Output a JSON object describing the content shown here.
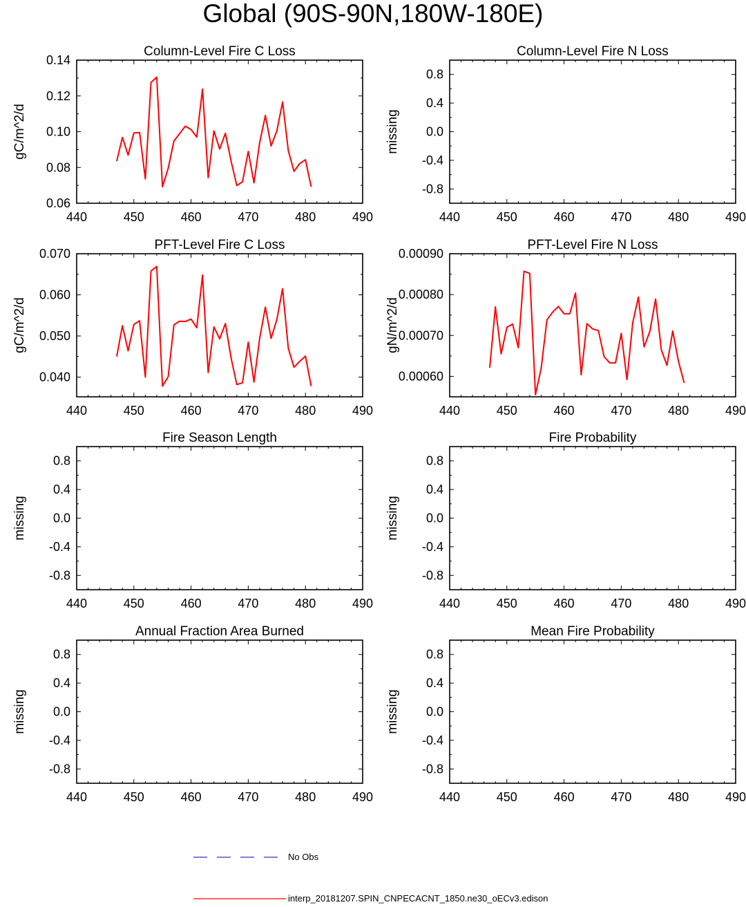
{
  "title": "Global (90S-90N,180W-180E)",
  "colors": {
    "model": "#ff0000",
    "obs": "#3333cc",
    "axis": "#000000"
  },
  "legend": {
    "obs_label": "No Obs",
    "model_label": "interp_20181207.SPIN_CNPECACNT_1850.ne30_oECv3.edison"
  },
  "chart_data": [
    {
      "type": "line",
      "title": "Column-Level Fire C Loss",
      "ylabel": "gC/m^2/d",
      "xlim": [
        440,
        490
      ],
      "ylim": [
        0.06,
        0.14
      ],
      "xticks": [
        "440",
        "450",
        "460",
        "470",
        "480",
        "490"
      ],
      "yticks": [
        {
          "v": 0.06,
          "label": "0.06"
        },
        {
          "v": 0.08,
          "label": "0.08"
        },
        {
          "v": 0.1,
          "label": "0.10"
        },
        {
          "v": 0.12,
          "label": "0.12"
        },
        {
          "v": 0.14,
          "label": "0.14"
        }
      ],
      "series": [
        {
          "x": [
            447,
            448,
            449,
            450,
            451,
            452,
            453,
            454,
            455,
            456,
            457,
            458,
            459,
            460,
            461,
            462,
            463,
            464,
            465,
            466,
            467,
            468,
            469,
            470,
            471,
            472,
            473,
            474,
            475,
            476,
            477,
            478,
            479,
            480,
            481
          ],
          "y": [
            0.0835,
            0.0968,
            0.0869,
            0.0993,
            0.0995,
            0.0736,
            0.1275,
            0.1305,
            0.0692,
            0.0795,
            0.0948,
            0.0989,
            0.1031,
            0.1012,
            0.097,
            0.1238,
            0.0743,
            0.1005,
            0.0903,
            0.0991,
            0.0835,
            0.0699,
            0.072,
            0.089,
            0.0714,
            0.0941,
            0.1091,
            0.092,
            0.1004,
            0.1166,
            0.0894,
            0.0778,
            0.0822,
            0.0843,
            0.0692
          ]
        }
      ]
    },
    {
      "type": "line",
      "title": "Column-Level Fire N Loss",
      "ylabel": "missing",
      "xlim": [
        440,
        490
      ],
      "ylim": [
        -1,
        1
      ],
      "xticks": [
        "440",
        "450",
        "460",
        "470",
        "480",
        "490"
      ],
      "yticks": [
        {
          "v": -0.8,
          "label": "-0.8"
        },
        {
          "v": -0.4,
          "label": "-0.4"
        },
        {
          "v": 0.0,
          "label": "0.0"
        },
        {
          "v": 0.4,
          "label": "0.4"
        },
        {
          "v": 0.8,
          "label": "0.8"
        }
      ],
      "series": []
    },
    {
      "type": "line",
      "title": "PFT-Level Fire C Loss",
      "ylabel": "gC/m^2/d",
      "xlim": [
        440,
        490
      ],
      "ylim": [
        0.0352,
        0.07
      ],
      "xticks": [
        "440",
        "450",
        "460",
        "470",
        "480",
        "490"
      ],
      "yticks": [
        {
          "v": 0.04,
          "label": "0.040"
        },
        {
          "v": 0.05,
          "label": "0.050"
        },
        {
          "v": 0.06,
          "label": "0.060"
        },
        {
          "v": 0.07,
          "label": "0.070"
        }
      ],
      "series": [
        {
          "x": [
            447,
            448,
            449,
            450,
            451,
            452,
            453,
            454,
            455,
            456,
            457,
            458,
            459,
            460,
            461,
            462,
            463,
            464,
            465,
            466,
            467,
            468,
            469,
            470,
            471,
            472,
            473,
            474,
            475,
            476,
            477,
            478,
            479,
            480,
            481
          ],
          "y": [
            0.045,
            0.0525,
            0.0464,
            0.0528,
            0.0537,
            0.04,
            0.0658,
            0.0669,
            0.0378,
            0.0401,
            0.0527,
            0.0536,
            0.0535,
            0.0541,
            0.052,
            0.0648,
            0.0411,
            0.0522,
            0.0493,
            0.053,
            0.0446,
            0.0382,
            0.0386,
            0.0485,
            0.0388,
            0.0495,
            0.057,
            0.0494,
            0.054,
            0.0615,
            0.047,
            0.0424,
            0.0438,
            0.0451,
            0.0378
          ]
        }
      ]
    },
    {
      "type": "line",
      "title": "PFT-Level Fire N Loss",
      "ylabel": "gN/m^2/d",
      "xlim": [
        440,
        490
      ],
      "ylim": [
        0.00055,
        0.0009
      ],
      "xticks": [
        "440",
        "450",
        "460",
        "470",
        "480",
        "490"
      ],
      "yticks": [
        {
          "v": 0.0006,
          "label": "0.00060"
        },
        {
          "v": 0.0007,
          "label": "0.00070"
        },
        {
          "v": 0.0008,
          "label": "0.00080"
        },
        {
          "v": 0.0009,
          "label": "0.00090"
        }
      ],
      "series": [
        {
          "x": [
            447,
            448,
            449,
            450,
            451,
            452,
            453,
            454,
            455,
            456,
            457,
            458,
            459,
            460,
            461,
            462,
            463,
            464,
            465,
            466,
            467,
            468,
            469,
            470,
            471,
            472,
            473,
            474,
            475,
            476,
            477,
            478,
            479,
            480,
            481
          ],
          "y": [
            0.000621,
            0.00077,
            0.000655,
            0.00072,
            0.000728,
            0.00067,
            0.000857,
            0.000852,
            0.000555,
            0.00062,
            0.000738,
            0.000757,
            0.000771,
            0.000753,
            0.000753,
            0.000804,
            0.000604,
            0.000729,
            0.000716,
            0.000712,
            0.000648,
            0.000633,
            0.000633,
            0.000705,
            0.000592,
            0.000731,
            0.000794,
            0.000672,
            0.00071,
            0.000789,
            0.000665,
            0.000627,
            0.000711,
            0.000637,
            0.000584
          ]
        }
      ]
    },
    {
      "type": "line",
      "title": "Fire Season Length",
      "ylabel": "missing",
      "xlim": [
        440,
        490
      ],
      "ylim": [
        -1,
        1
      ],
      "xticks": [
        "440",
        "450",
        "460",
        "470",
        "480",
        "490"
      ],
      "yticks": [
        {
          "v": -0.8,
          "label": "-0.8"
        },
        {
          "v": -0.4,
          "label": "-0.4"
        },
        {
          "v": 0.0,
          "label": "0.0"
        },
        {
          "v": 0.4,
          "label": "0.4"
        },
        {
          "v": 0.8,
          "label": "0.8"
        }
      ],
      "series": []
    },
    {
      "type": "line",
      "title": "Fire Probability",
      "ylabel": "missing",
      "xlim": [
        440,
        490
      ],
      "ylim": [
        -1,
        1
      ],
      "xticks": [
        "440",
        "450",
        "460",
        "470",
        "480",
        "490"
      ],
      "yticks": [
        {
          "v": -0.8,
          "label": "-0.8"
        },
        {
          "v": -0.4,
          "label": "-0.4"
        },
        {
          "v": 0.0,
          "label": "0.0"
        },
        {
          "v": 0.4,
          "label": "0.4"
        },
        {
          "v": 0.8,
          "label": "0.8"
        }
      ],
      "series": []
    },
    {
      "type": "line",
      "title": "Annual Fraction Area Burned",
      "ylabel": "missing",
      "xlim": [
        440,
        490
      ],
      "ylim": [
        -1,
        1
      ],
      "xticks": [
        "440",
        "450",
        "460",
        "470",
        "480",
        "490"
      ],
      "yticks": [
        {
          "v": -0.8,
          "label": "-0.8"
        },
        {
          "v": -0.4,
          "label": "-0.4"
        },
        {
          "v": 0.0,
          "label": "0.0"
        },
        {
          "v": 0.4,
          "label": "0.4"
        },
        {
          "v": 0.8,
          "label": "0.8"
        }
      ],
      "series": []
    },
    {
      "type": "line",
      "title": "Mean Fire Probability",
      "ylabel": "missing",
      "xlim": [
        440,
        490
      ],
      "ylim": [
        -1,
        1
      ],
      "xticks": [
        "440",
        "450",
        "460",
        "470",
        "480",
        "490"
      ],
      "yticks": [
        {
          "v": -0.8,
          "label": "-0.8"
        },
        {
          "v": -0.4,
          "label": "-0.4"
        },
        {
          "v": 0.0,
          "label": "0.0"
        },
        {
          "v": 0.4,
          "label": "0.4"
        },
        {
          "v": 0.8,
          "label": "0.8"
        }
      ],
      "series": []
    }
  ]
}
